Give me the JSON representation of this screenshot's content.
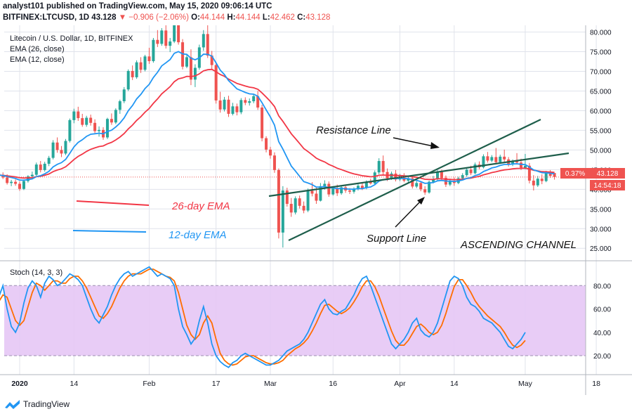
{
  "header": {
    "line1": "analyst101 published on TradingView.com, May 15, 2020 09:06:14 UTC",
    "symbol": "BITFINEX:LTCUSD, 1D",
    "price": "43.128",
    "change": "▼ −0.906 (−2.06%)",
    "o_label": "O:",
    "o": "44.144",
    "h_label": "H:",
    "h": "44.144",
    "l_label": "L:",
    "l": "42.462",
    "c_label": "C:",
    "c": "43.128"
  },
  "legend": {
    "title": "Litecoin / U.S. Dollar, 1D, BITFINEX",
    "ema26": "EMA (26, close)",
    "ema12": "EMA (12, close)",
    "stoch": "Stoch (14, 3, 3)"
  },
  "annotations": {
    "resistance": "Resistance Line",
    "support": "Support Line",
    "channel": "ASCENDING CHANNEL",
    "ema26_label": "26-day EMA",
    "ema12_label": "12-day EMA"
  },
  "price_tags": {
    "pct": "0.37%",
    "last": "43.128",
    "countdown": "14:54:18"
  },
  "footer": {
    "brand": "TradingView"
  },
  "colors": {
    "up": "#26a69a",
    "down": "#ef5350",
    "ema12": "#2196f3",
    "ema26": "#f23645",
    "stoch_k": "#2196f3",
    "stoch_d": "#ff6d00",
    "stoch_band": "#e6c6f5",
    "channel": "#1e5e4b",
    "grid": "#e0e3eb"
  },
  "chart_data": [
    {
      "type": "candlestick",
      "title": "Litecoin / U.S. Dollar, 1D, BITFINEX",
      "ylim": [
        25,
        80
      ],
      "y_ticks": [
        25,
        30,
        35,
        40,
        45,
        50,
        55,
        60,
        65,
        70,
        75,
        80
      ],
      "y_tick_labels": [
        "25.000",
        "30.000",
        "35.000",
        "40.000",
        "45.000",
        "50.000",
        "55.000",
        "60.000",
        "65.000",
        "70.000",
        "75.000",
        "80.000"
      ],
      "x_tick_labels": [
        "2020",
        "14",
        "Feb",
        "17",
        "Mar",
        "16",
        "Apr",
        "14",
        "May",
        "18"
      ],
      "x_tick_days": [
        0,
        13,
        31,
        47,
        60,
        75,
        91,
        104,
        121,
        138
      ],
      "last_price": 43.128,
      "candles_start": "2019-12-27",
      "candles": [
        [
          44.0,
          44.8,
          42.9,
          43.6
        ],
        [
          43.6,
          44.3,
          42.6,
          43.0
        ],
        [
          43.0,
          43.8,
          41.2,
          41.6
        ],
        [
          41.6,
          42.4,
          40.8,
          41.9
        ],
        [
          41.9,
          42.5,
          40.9,
          41.4
        ],
        [
          41.4,
          42.0,
          39.6,
          40.1
        ],
        [
          40.1,
          42.5,
          39.8,
          42.1
        ],
        [
          42.1,
          43.6,
          41.7,
          43.3
        ],
        [
          43.3,
          44.5,
          42.8,
          43.7
        ],
        [
          43.7,
          46.8,
          43.4,
          46.3
        ],
        [
          46.3,
          47.2,
          44.3,
          44.9
        ],
        [
          44.9,
          47.0,
          44.5,
          46.5
        ],
        [
          46.5,
          48.5,
          45.9,
          48.0
        ],
        [
          48.0,
          52.5,
          47.6,
          51.9
        ],
        [
          51.9,
          53.2,
          49.3,
          50.0
        ],
        [
          50.0,
          51.0,
          48.2,
          49.1
        ],
        [
          49.1,
          52.8,
          48.7,
          52.3
        ],
        [
          52.3,
          58.0,
          51.9,
          57.6
        ],
        [
          57.6,
          60.5,
          56.8,
          59.8
        ],
        [
          59.8,
          61.0,
          57.4,
          58.1
        ],
        [
          58.1,
          59.2,
          55.9,
          56.4
        ],
        [
          56.4,
          58.7,
          55.9,
          58.2
        ],
        [
          58.2,
          59.0,
          56.2,
          56.9
        ],
        [
          56.9,
          57.8,
          54.3,
          54.8
        ],
        [
          54.8,
          56.0,
          53.4,
          55.1
        ],
        [
          55.1,
          55.8,
          52.6,
          53.2
        ],
        [
          53.2,
          58.2,
          52.8,
          57.9
        ],
        [
          57.9,
          59.3,
          56.4,
          57.0
        ],
        [
          57.0,
          60.6,
          56.6,
          60.2
        ],
        [
          60.2,
          62.8,
          59.2,
          62.4
        ],
        [
          62.4,
          66.0,
          61.9,
          65.4
        ],
        [
          65.4,
          70.5,
          65.0,
          70.1
        ],
        [
          70.1,
          71.5,
          67.8,
          68.5
        ],
        [
          68.5,
          72.8,
          68.1,
          72.3
        ],
        [
          72.3,
          73.6,
          69.6,
          70.4
        ],
        [
          70.4,
          74.2,
          70.0,
          73.8
        ],
        [
          73.8,
          76.0,
          71.9,
          72.6
        ],
        [
          72.6,
          78.5,
          72.2,
          78.0
        ],
        [
          78.0,
          80.5,
          76.2,
          77.0
        ],
        [
          77.0,
          81.0,
          76.5,
          80.4
        ],
        [
          80.4,
          82.0,
          75.8,
          76.5
        ],
        [
          76.5,
          78.5,
          74.9,
          77.6
        ],
        [
          77.6,
          84.0,
          77.2,
          83.3
        ],
        [
          83.3,
          84.0,
          76.8,
          77.4
        ],
        [
          77.4,
          78.2,
          70.5,
          71.2
        ],
        [
          71.2,
          74.5,
          70.8,
          73.6
        ],
        [
          73.6,
          75.6,
          66.5,
          67.9
        ],
        [
          67.9,
          71.8,
          66.0,
          70.9
        ],
        [
          70.9,
          76.8,
          70.4,
          76.1
        ],
        [
          76.1,
          80.5,
          75.2,
          79.5
        ],
        [
          79.5,
          83.5,
          73.4,
          74.0
        ],
        [
          74.0,
          75.2,
          70.6,
          71.6
        ],
        [
          71.6,
          72.2,
          61.8,
          62.6
        ],
        [
          62.6,
          64.8,
          59.5,
          60.3
        ],
        [
          60.3,
          63.5,
          59.8,
          62.8
        ],
        [
          62.8,
          63.8,
          58.4,
          59.2
        ],
        [
          59.2,
          62.0,
          58.8,
          61.1
        ],
        [
          61.1,
          61.8,
          58.8,
          59.6
        ],
        [
          59.6,
          63.2,
          59.1,
          62.7
        ],
        [
          62.7,
          63.4,
          61.4,
          62.0
        ],
        [
          62.0,
          63.1,
          61.3,
          62.4
        ],
        [
          62.4,
          64.2,
          61.9,
          63.7
        ],
        [
          63.7,
          65.0,
          60.2,
          60.8
        ],
        [
          60.8,
          61.5,
          52.2,
          53.0
        ],
        [
          53.0,
          53.5,
          49.4,
          50.1
        ],
        [
          50.1,
          50.8,
          47.8,
          48.6
        ],
        [
          48.6,
          49.4,
          44.2,
          44.9
        ],
        [
          44.9,
          45.3,
          27.5,
          29.0
        ],
        [
          29.0,
          40.8,
          25.2,
          39.7
        ],
        [
          39.7,
          40.4,
          35.6,
          36.3
        ],
        [
          36.3,
          37.8,
          33.0,
          34.1
        ],
        [
          34.1,
          38.2,
          33.6,
          37.7
        ],
        [
          37.7,
          38.4,
          35.1,
          35.8
        ],
        [
          35.8,
          36.9,
          33.9,
          34.6
        ],
        [
          34.6,
          40.2,
          34.2,
          39.6
        ],
        [
          39.6,
          41.8,
          38.2,
          38.9
        ],
        [
          38.9,
          40.4,
          36.3,
          37.1
        ],
        [
          37.1,
          41.6,
          36.9,
          40.8
        ],
        [
          40.8,
          42.3,
          39.9,
          41.4
        ],
        [
          41.4,
          42.0,
          38.1,
          38.7
        ],
        [
          38.7,
          40.6,
          38.4,
          40.2
        ],
        [
          40.2,
          41.2,
          38.3,
          39.0
        ],
        [
          39.0,
          41.0,
          38.6,
          40.5
        ],
        [
          40.5,
          41.1,
          39.1,
          39.7
        ],
        [
          39.7,
          40.3,
          38.8,
          39.4
        ],
        [
          39.4,
          40.5,
          38.9,
          40.1
        ],
        [
          40.1,
          41.3,
          39.7,
          40.9
        ],
        [
          40.9,
          41.7,
          39.8,
          40.3
        ],
        [
          40.3,
          42.3,
          40.0,
          41.8
        ],
        [
          41.8,
          42.7,
          41.2,
          41.5
        ],
        [
          41.5,
          44.8,
          41.2,
          44.3
        ],
        [
          44.3,
          47.9,
          43.8,
          47.2
        ],
        [
          47.2,
          48.6,
          43.7,
          44.4
        ],
        [
          44.4,
          45.3,
          42.1,
          42.8
        ],
        [
          42.8,
          44.5,
          42.4,
          44.0
        ],
        [
          44.0,
          44.9,
          42.0,
          42.5
        ],
        [
          42.5,
          43.9,
          42.1,
          43.5
        ],
        [
          43.5,
          44.1,
          41.8,
          42.2
        ],
        [
          42.2,
          43.3,
          41.7,
          42.8
        ],
        [
          42.8,
          43.4,
          40.2,
          40.7
        ],
        [
          40.7,
          42.1,
          40.3,
          41.6
        ],
        [
          41.6,
          42.0,
          39.5,
          40.0
        ],
        [
          40.0,
          40.8,
          38.6,
          39.2
        ],
        [
          39.2,
          42.2,
          38.9,
          41.9
        ],
        [
          41.9,
          43.4,
          41.5,
          42.6
        ],
        [
          42.6,
          44.9,
          42.3,
          44.4
        ],
        [
          44.4,
          45.0,
          42.4,
          42.9
        ],
        [
          42.9,
          43.5,
          40.6,
          41.2
        ],
        [
          41.2,
          42.5,
          40.8,
          42.0
        ],
        [
          42.0,
          43.0,
          40.9,
          41.6
        ],
        [
          41.6,
          43.2,
          41.3,
          42.8
        ],
        [
          42.8,
          44.1,
          42.5,
          43.6
        ],
        [
          43.6,
          45.4,
          43.2,
          45.0
        ],
        [
          45.0,
          46.0,
          43.6,
          44.1
        ],
        [
          44.1,
          46.8,
          43.8,
          46.3
        ],
        [
          46.3,
          47.1,
          45.1,
          45.6
        ],
        [
          45.6,
          48.9,
          45.3,
          48.4
        ],
        [
          48.4,
          49.5,
          46.8,
          47.3
        ],
        [
          47.3,
          48.7,
          46.9,
          48.2
        ],
        [
          48.2,
          50.5,
          46.3,
          46.9
        ],
        [
          46.9,
          48.8,
          46.5,
          48.3
        ],
        [
          48.3,
          50.1,
          47.0,
          47.6
        ],
        [
          47.6,
          48.2,
          45.8,
          46.4
        ],
        [
          46.4,
          47.6,
          45.9,
          47.1
        ],
        [
          47.1,
          49.2,
          46.3,
          46.8
        ],
        [
          46.8,
          47.8,
          44.9,
          45.5
        ],
        [
          45.5,
          49.0,
          45.1,
          46.0
        ],
        [
          46.0,
          46.7,
          41.5,
          42.2
        ],
        [
          42.2,
          43.6,
          39.7,
          41.0
        ],
        [
          41.0,
          43.4,
          40.6,
          42.7
        ],
        [
          42.7,
          43.8,
          41.3,
          42.1
        ],
        [
          42.1,
          44.7,
          41.8,
          44.1
        ],
        [
          44.1,
          44.9,
          42.9,
          43.4
        ],
        [
          44.144,
          44.144,
          42.462,
          43.128
        ]
      ]
    },
    {
      "type": "line",
      "title": "Stoch (14, 3, 3)",
      "ylim": [
        0,
        100
      ],
      "y_ticks": [
        20,
        40,
        60,
        80
      ],
      "y_tick_labels": [
        "20.00",
        "40.00",
        "60.00",
        "80.00"
      ],
      "band": [
        20,
        80
      ],
      "series": [
        {
          "name": "%K",
          "values": [
            70,
            80,
            60,
            45,
            40,
            48,
            65,
            78,
            84,
            80,
            70,
            82,
            88,
            85,
            80,
            82,
            86,
            90,
            88,
            85,
            80,
            70,
            60,
            52,
            48,
            55,
            62,
            72,
            80,
            86,
            90,
            92,
            88,
            90,
            92,
            94,
            96,
            92,
            88,
            90,
            88,
            86,
            80,
            60,
            45,
            38,
            30,
            35,
            50,
            62,
            48,
            30,
            20,
            15,
            12,
            10,
            14,
            16,
            20,
            22,
            20,
            18,
            16,
            14,
            12,
            12,
            14,
            16,
            20,
            24,
            26,
            28,
            30,
            34,
            40,
            48,
            56,
            64,
            68,
            60,
            56,
            55,
            58,
            60,
            66,
            72,
            80,
            86,
            88,
            80,
            70,
            60,
            50,
            40,
            30,
            26,
            30,
            34,
            40,
            48,
            52,
            42,
            38,
            36,
            40,
            48,
            60,
            72,
            84,
            88,
            86,
            80,
            70,
            64,
            62,
            58,
            52,
            50,
            48,
            44,
            40,
            34,
            28,
            26,
            30,
            34,
            40
          ]
        },
        {
          "name": "%D",
          "values": [
            66,
            72,
            70,
            60,
            50,
            46,
            50,
            62,
            74,
            82,
            80,
            76,
            80,
            84,
            84,
            82,
            82,
            86,
            88,
            88,
            84,
            78,
            70,
            62,
            54,
            52,
            56,
            62,
            70,
            78,
            84,
            88,
            90,
            90,
            90,
            92,
            94,
            94,
            92,
            90,
            88,
            87,
            84,
            74,
            60,
            46,
            38,
            34,
            38,
            48,
            54,
            48,
            34,
            22,
            16,
            13,
            12,
            13,
            16,
            19,
            20,
            20,
            18,
            16,
            14,
            13,
            13,
            14,
            16,
            20,
            23,
            26,
            28,
            31,
            35,
            41,
            48,
            56,
            63,
            64,
            61,
            58,
            56,
            58,
            61,
            66,
            72,
            79,
            84,
            84,
            79,
            71,
            61,
            51,
            41,
            33,
            29,
            29,
            33,
            39,
            45,
            47,
            44,
            40,
            38,
            40,
            46,
            56,
            68,
            79,
            85,
            85,
            80,
            74,
            67,
            62,
            58,
            54,
            51,
            48,
            45,
            40,
            34,
            29,
            27,
            29,
            33
          ]
        }
      ]
    }
  ]
}
